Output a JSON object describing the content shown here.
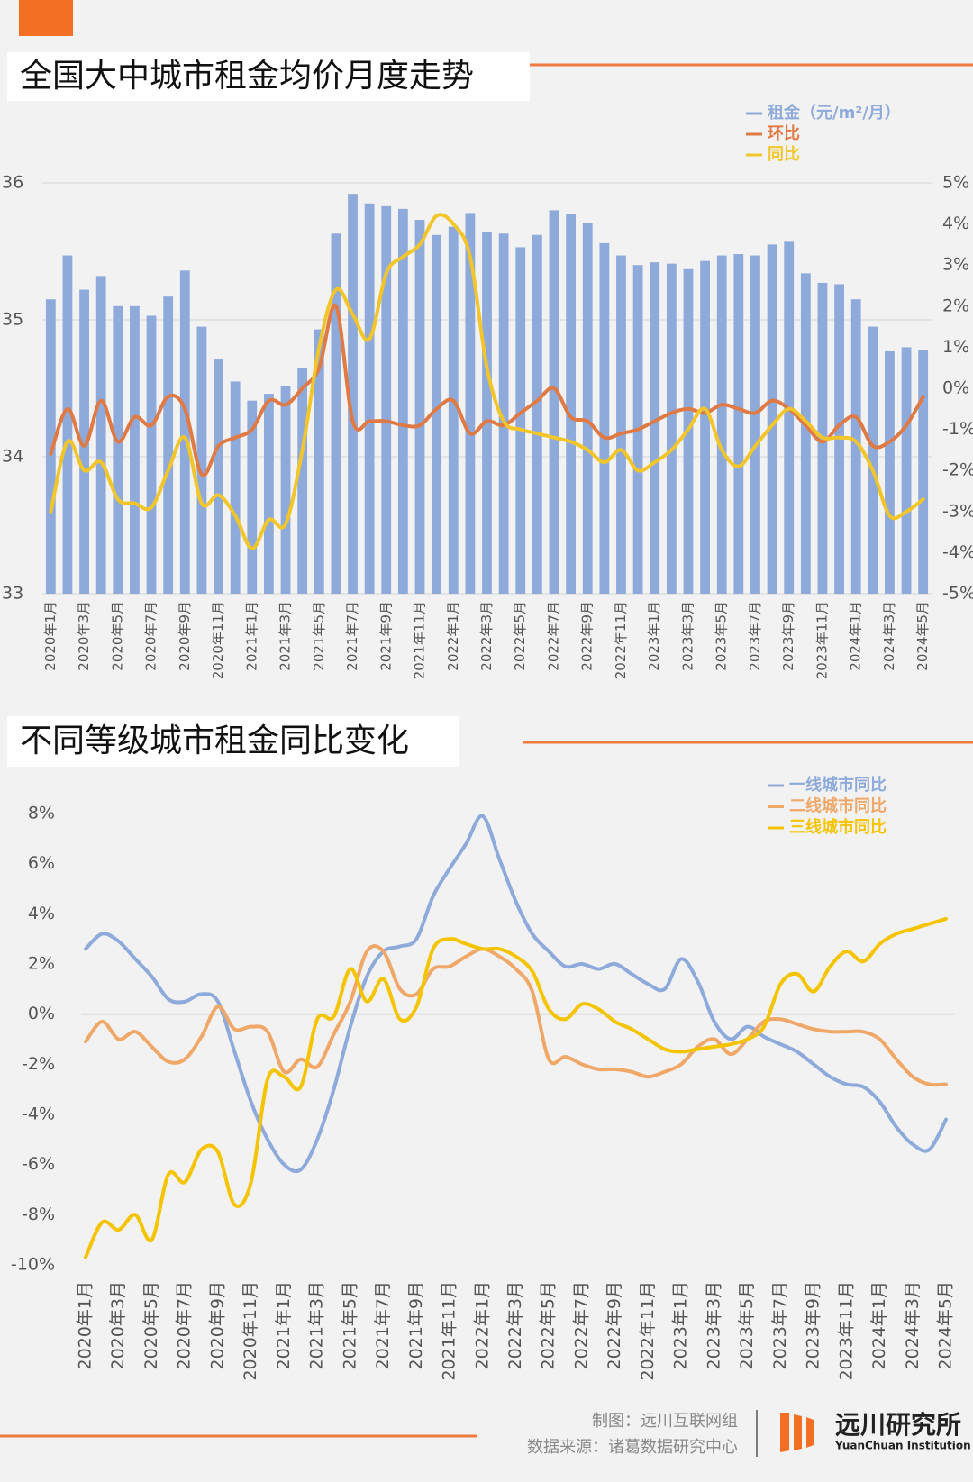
{
  "chart_data": [
    {
      "type": "bar-line",
      "title": "全国大中城市租金均价月度走势",
      "categories": [
        "2020年1月",
        null,
        "2020年3月",
        null,
        "2020年5月",
        null,
        "2020年7月",
        null,
        "2020年9月",
        null,
        "2020年11月",
        null,
        "2021年1月",
        null,
        "2021年3月",
        null,
        "2021年5月",
        null,
        "2021年7月",
        null,
        "2021年9月",
        null,
        "2021年11月",
        null,
        "2022年1月",
        null,
        "2022年3月",
        null,
        "2022年5月",
        null,
        "2022年7月",
        null,
        "2022年9月",
        null,
        "2022年11月",
        null,
        "2023年1月",
        null,
        "2023年3月",
        null,
        "2023年5月",
        null,
        "2023年7月",
        null,
        "2023年9月",
        null,
        "2023年11月",
        null,
        "2024年1月",
        null,
        "2024年3月",
        null,
        "2024年5月"
      ],
      "series": [
        {
          "name": "租金（元/m²/月）",
          "type": "bar",
          "color": "#8eaadb",
          "values": [
            35.15,
            35.47,
            35.22,
            35.32,
            35.1,
            35.1,
            35.03,
            35.17,
            35.36,
            34.95,
            34.71,
            34.55,
            34.41,
            34.46,
            34.52,
            34.65,
            34.93,
            35.63,
            35.92,
            35.85,
            35.83,
            35.81,
            35.73,
            35.62,
            35.68,
            35.78,
            35.64,
            35.63,
            35.53,
            35.62,
            35.8,
            35.77,
            35.71,
            35.56,
            35.47,
            35.4,
            35.42,
            35.41,
            35.37,
            35.43,
            35.47,
            35.48,
            35.47,
            35.55,
            35.57,
            35.34,
            35.27,
            35.26,
            35.15,
            34.95,
            34.77,
            34.8,
            34.78
          ]
        },
        {
          "name": "环比",
          "type": "line",
          "axis": "y2",
          "color": "#e07a45",
          "values": [
            -1.6,
            -0.5,
            -1.4,
            -0.3,
            -1.3,
            -0.7,
            -0.9,
            -0.2,
            -0.5,
            -2.1,
            -1.4,
            -1.2,
            -1.0,
            -0.3,
            -0.4,
            0.0,
            0.5,
            2.0,
            -0.8,
            -0.8,
            -0.8,
            -0.9,
            -0.9,
            -0.5,
            -0.3,
            -1.1,
            -0.8,
            -0.9,
            -0.6,
            -0.3,
            0.0,
            -0.7,
            -0.8,
            -1.2,
            -1.1,
            -1.0,
            -0.8,
            -0.6,
            -0.5,
            -0.6,
            -0.4,
            -0.5,
            -0.6,
            -0.3,
            -0.5,
            -0.9,
            -1.3,
            -0.9,
            -0.7,
            -1.4,
            -1.3,
            -0.9,
            -0.2
          ]
        },
        {
          "name": "同比",
          "type": "line",
          "axis": "y2",
          "color": "#f2c62a",
          "values": [
            -3.0,
            -1.3,
            -2.0,
            -1.8,
            -2.7,
            -2.8,
            -2.9,
            -2.0,
            -1.2,
            -2.8,
            -2.6,
            -3.1,
            -3.9,
            -3.2,
            -3.3,
            -1.5,
            1.0,
            2.4,
            1.8,
            1.2,
            2.8,
            3.2,
            3.5,
            4.2,
            4.0,
            3.2,
            0.5,
            -0.8,
            -1.0,
            -1.1,
            -1.2,
            -1.3,
            -1.5,
            -1.8,
            -1.5,
            -2.0,
            -1.8,
            -1.5,
            -1.0,
            -0.5,
            -1.5,
            -1.9,
            -1.4,
            -0.9,
            -0.5,
            -0.8,
            -1.2,
            -1.2,
            -1.3,
            -2.0,
            -3.1,
            -3.0,
            -2.7
          ]
        }
      ],
      "ylim": [
        33,
        36
      ],
      "yticks": [
        33,
        34,
        35,
        36
      ],
      "y2lim": [
        -5,
        5
      ],
      "y2ticks": [
        {
          "value": -5,
          "label": "-5%"
        },
        {
          "value": -4,
          "label": "-4%"
        },
        {
          "value": -3,
          "label": "-3%"
        },
        {
          "value": -2,
          "label": "-2%"
        },
        {
          "value": -1,
          "label": "-1%"
        },
        {
          "value": 0,
          "label": "0%"
        },
        {
          "value": 1,
          "label": "1%"
        },
        {
          "value": 2,
          "label": "2%"
        },
        {
          "value": 3,
          "label": "3%"
        },
        {
          "value": 4,
          "label": "4%"
        },
        {
          "value": 5,
          "label": "5%"
        }
      ],
      "grid": true,
      "legend": "top-right"
    },
    {
      "type": "line",
      "title": "不同等级城市租金同比变化",
      "categories": [
        "2020年1月",
        null,
        "2020年3月",
        null,
        "2020年5月",
        null,
        "2020年7月",
        null,
        "2020年9月",
        null,
        "2020年11月",
        null,
        "2021年1月",
        null,
        "2021年3月",
        null,
        "2021年5月",
        null,
        "2021年7月",
        null,
        "2021年9月",
        null,
        "2021年11月",
        null,
        "2022年1月",
        null,
        "2022年3月",
        null,
        "2022年5月",
        null,
        "2022年7月",
        null,
        "2022年9月",
        null,
        "2022年11月",
        null,
        "2023年1月",
        null,
        "2023年3月",
        null,
        "2023年5月",
        null,
        "2023年7月",
        null,
        "2023年9月",
        null,
        "2023年11月",
        null,
        "2024年1月",
        null,
        "2024年3月",
        null,
        "2024年5月"
      ],
      "series": [
        {
          "name": "一线城市同比",
          "type": "line",
          "color": "#8eaadb",
          "values": [
            2.6,
            3.2,
            2.9,
            2.2,
            1.5,
            0.6,
            0.5,
            0.8,
            0.5,
            -1.5,
            -3.5,
            -5.0,
            -6.0,
            -6.2,
            -5.0,
            -3.0,
            -0.5,
            1.5,
            2.5,
            2.7,
            3.0,
            4.7,
            5.8,
            6.8,
            7.9,
            6.2,
            4.5,
            3.2,
            2.5,
            1.9,
            2.0,
            1.8,
            2.0,
            1.6,
            1.2,
            1.0,
            2.2,
            1.3,
            -0.3,
            -1.0,
            -0.5,
            -0.9,
            -1.2,
            -1.5,
            -2.0,
            -2.5,
            -2.8,
            -2.9,
            -3.5,
            -4.5,
            -5.2,
            -5.4,
            -4.2
          ]
        },
        {
          "name": "二线城市同比",
          "type": "line",
          "color": "#f0a868",
          "values": [
            -1.1,
            -0.3,
            -1.0,
            -0.7,
            -1.3,
            -1.9,
            -1.8,
            -0.9,
            0.3,
            -0.6,
            -0.5,
            -0.7,
            -2.3,
            -1.8,
            -2.1,
            -0.8,
            0.5,
            2.5,
            2.5,
            1.0,
            0.8,
            1.8,
            1.9,
            2.3,
            2.6,
            2.3,
            1.8,
            0.9,
            -1.8,
            -1.7,
            -2.0,
            -2.2,
            -2.2,
            -2.3,
            -2.5,
            -2.3,
            -2.0,
            -1.3,
            -1.0,
            -1.6,
            -1.0,
            -0.3,
            -0.2,
            -0.4,
            -0.6,
            -0.7,
            -0.7,
            -0.7,
            -1.0,
            -1.8,
            -2.5,
            -2.8,
            -2.8
          ]
        },
        {
          "name": "三线城市同比",
          "type": "line",
          "color": "#f5c400",
          "values": [
            -9.7,
            -8.3,
            -8.6,
            -8.0,
            -9.0,
            -6.4,
            -6.7,
            -5.4,
            -5.5,
            -7.6,
            -6.7,
            -2.6,
            -2.5,
            -2.9,
            -0.2,
            -0.1,
            1.8,
            0.5,
            1.4,
            -0.2,
            0.3,
            2.6,
            3.0,
            2.8,
            2.6,
            2.6,
            2.3,
            1.7,
            0.2,
            -0.2,
            0.4,
            0.2,
            -0.3,
            -0.6,
            -1.0,
            -1.4,
            -1.5,
            -1.4,
            -1.3,
            -1.2,
            -1.0,
            -0.5,
            1.2,
            1.6,
            0.9,
            1.9,
            2.5,
            2.1,
            2.8,
            3.2,
            3.4,
            3.6,
            3.8
          ]
        }
      ],
      "ylim": [
        -10,
        8
      ],
      "yticks": [
        {
          "value": -10,
          "label": "-10%"
        },
        {
          "value": -8,
          "label": "-8%"
        },
        {
          "value": -6,
          "label": "-6%"
        },
        {
          "value": -4,
          "label": "-4%"
        },
        {
          "value": -2,
          "label": "-2%"
        },
        {
          "value": 0,
          "label": "0%"
        },
        {
          "value": 2,
          "label": "2%"
        },
        {
          "value": 4,
          "label": "4%"
        },
        {
          "value": 6,
          "label": "6%"
        },
        {
          "value": 8,
          "label": "8%"
        }
      ],
      "grid": false,
      "legend": "top-right"
    }
  ],
  "footer": {
    "credit": "制图：远川互联网组",
    "source": "数据来源：诸葛数据研究中心",
    "brand": "远川研究所",
    "brand_en": "YuanChuan Institution"
  }
}
